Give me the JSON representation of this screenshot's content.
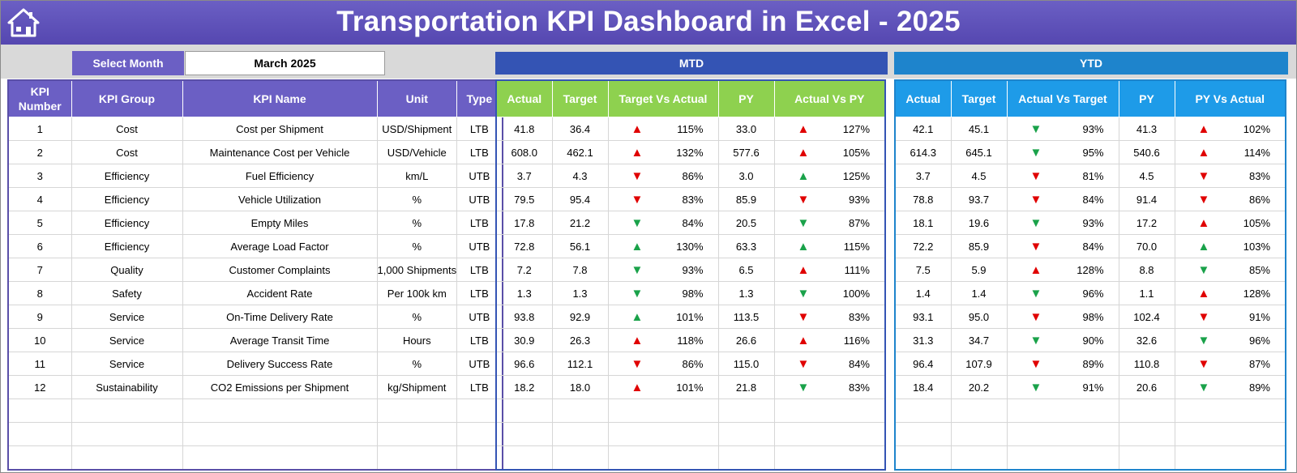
{
  "header": {
    "title": "Transportation KPI Dashboard in Excel - 2025",
    "home_icon": "home-icon"
  },
  "selector": {
    "label": "Select Month",
    "value": "March 2025"
  },
  "bands": {
    "mtd": "MTD",
    "ytd": "YTD"
  },
  "kpi_columns": [
    "KPI Number",
    "KPI Group",
    "KPI Name",
    "Unit",
    "Type"
  ],
  "mtd_columns": [
    "Actual",
    "Target",
    "Target Vs Actual",
    "PY",
    "Actual Vs PY"
  ],
  "ytd_columns": [
    "Actual",
    "Target",
    "Actual Vs Target",
    "PY",
    "PY Vs Actual"
  ],
  "colors": {
    "header": "#5a4fb6",
    "kpi_header": "#6b5fc4",
    "mtd_band": "#3454b4",
    "mtd_header": "#8ed14f",
    "ytd_band": "#1e84cc",
    "ytd_header": "#1e9be8",
    "arrow_red": "#e00000",
    "arrow_green": "#1aa24a"
  },
  "rows": [
    {
      "num": "1",
      "group": "Cost",
      "name": "Cost per Shipment",
      "unit": "USD/Shipment",
      "type": "LTB",
      "mtd": {
        "actual": "41.8",
        "target": "36.4",
        "tva_arrow": "up-red",
        "tva": "115%",
        "py": "33.0",
        "avp_arrow": "up-red",
        "avp": "127%"
      },
      "ytd": {
        "actual": "42.1",
        "target": "45.1",
        "avt_arrow": "down-green",
        "avt": "93%",
        "py": "41.3",
        "pva_arrow": "up-red",
        "pva": "102%"
      }
    },
    {
      "num": "2",
      "group": "Cost",
      "name": "Maintenance Cost per Vehicle",
      "unit": "USD/Vehicle",
      "type": "LTB",
      "mtd": {
        "actual": "608.0",
        "target": "462.1",
        "tva_arrow": "up-red",
        "tva": "132%",
        "py": "577.6",
        "avp_arrow": "up-red",
        "avp": "105%"
      },
      "ytd": {
        "actual": "614.3",
        "target": "645.1",
        "avt_arrow": "down-green",
        "avt": "95%",
        "py": "540.6",
        "pva_arrow": "up-red",
        "pva": "114%"
      }
    },
    {
      "num": "3",
      "group": "Efficiency",
      "name": "Fuel Efficiency",
      "unit": "km/L",
      "type": "UTB",
      "mtd": {
        "actual": "3.7",
        "target": "4.3",
        "tva_arrow": "down-red",
        "tva": "86%",
        "py": "3.0",
        "avp_arrow": "up-green",
        "avp": "125%"
      },
      "ytd": {
        "actual": "3.7",
        "target": "4.5",
        "avt_arrow": "down-red",
        "avt": "81%",
        "py": "4.5",
        "pva_arrow": "down-red",
        "pva": "83%"
      }
    },
    {
      "num": "4",
      "group": "Efficiency",
      "name": "Vehicle Utilization",
      "unit": "%",
      "type": "UTB",
      "mtd": {
        "actual": "79.5",
        "target": "95.4",
        "tva_arrow": "down-red",
        "tva": "83%",
        "py": "85.9",
        "avp_arrow": "down-red",
        "avp": "93%"
      },
      "ytd": {
        "actual": "78.8",
        "target": "93.7",
        "avt_arrow": "down-red",
        "avt": "84%",
        "py": "91.4",
        "pva_arrow": "down-red",
        "pva": "86%"
      }
    },
    {
      "num": "5",
      "group": "Efficiency",
      "name": "Empty Miles",
      "unit": "%",
      "type": "LTB",
      "mtd": {
        "actual": "17.8",
        "target": "21.2",
        "tva_arrow": "down-green",
        "tva": "84%",
        "py": "20.5",
        "avp_arrow": "down-green",
        "avp": "87%"
      },
      "ytd": {
        "actual": "18.1",
        "target": "19.6",
        "avt_arrow": "down-green",
        "avt": "93%",
        "py": "17.2",
        "pva_arrow": "up-red",
        "pva": "105%"
      }
    },
    {
      "num": "6",
      "group": "Efficiency",
      "name": "Average Load Factor",
      "unit": "%",
      "type": "UTB",
      "mtd": {
        "actual": "72.8",
        "target": "56.1",
        "tva_arrow": "up-green",
        "tva": "130%",
        "py": "63.3",
        "avp_arrow": "up-green",
        "avp": "115%"
      },
      "ytd": {
        "actual": "72.2",
        "target": "85.9",
        "avt_arrow": "down-red",
        "avt": "84%",
        "py": "70.0",
        "pva_arrow": "up-green",
        "pva": "103%"
      }
    },
    {
      "num": "7",
      "group": "Quality",
      "name": "Customer Complaints",
      "unit": "1,000 Shipments",
      "type": "LTB",
      "mtd": {
        "actual": "7.2",
        "target": "7.8",
        "tva_arrow": "down-green",
        "tva": "93%",
        "py": "6.5",
        "avp_arrow": "up-red",
        "avp": "111%"
      },
      "ytd": {
        "actual": "7.5",
        "target": "5.9",
        "avt_arrow": "up-red",
        "avt": "128%",
        "py": "8.8",
        "pva_arrow": "down-green",
        "pva": "85%"
      }
    },
    {
      "num": "8",
      "group": "Safety",
      "name": "Accident Rate",
      "unit": "Per 100k km",
      "type": "LTB",
      "mtd": {
        "actual": "1.3",
        "target": "1.3",
        "tva_arrow": "down-green",
        "tva": "98%",
        "py": "1.3",
        "avp_arrow": "down-green",
        "avp": "100%"
      },
      "ytd": {
        "actual": "1.4",
        "target": "1.4",
        "avt_arrow": "down-green",
        "avt": "96%",
        "py": "1.1",
        "pva_arrow": "up-red",
        "pva": "128%"
      }
    },
    {
      "num": "9",
      "group": "Service",
      "name": "On-Time Delivery Rate",
      "unit": "%",
      "type": "UTB",
      "mtd": {
        "actual": "93.8",
        "target": "92.9",
        "tva_arrow": "up-green",
        "tva": "101%",
        "py": "113.5",
        "avp_arrow": "down-red",
        "avp": "83%"
      },
      "ytd": {
        "actual": "93.1",
        "target": "95.0",
        "avt_arrow": "down-red",
        "avt": "98%",
        "py": "102.4",
        "pva_arrow": "down-red",
        "pva": "91%"
      }
    },
    {
      "num": "10",
      "group": "Service",
      "name": "Average Transit Time",
      "unit": "Hours",
      "type": "LTB",
      "mtd": {
        "actual": "30.9",
        "target": "26.3",
        "tva_arrow": "up-red",
        "tva": "118%",
        "py": "26.6",
        "avp_arrow": "up-red",
        "avp": "116%"
      },
      "ytd": {
        "actual": "31.3",
        "target": "34.7",
        "avt_arrow": "down-green",
        "avt": "90%",
        "py": "32.6",
        "pva_arrow": "down-green",
        "pva": "96%"
      }
    },
    {
      "num": "11",
      "group": "Service",
      "name": "Delivery Success Rate",
      "unit": "%",
      "type": "UTB",
      "mtd": {
        "actual": "96.6",
        "target": "112.1",
        "tva_arrow": "down-red",
        "tva": "86%",
        "py": "115.0",
        "avp_arrow": "down-red",
        "avp": "84%"
      },
      "ytd": {
        "actual": "96.4",
        "target": "107.9",
        "avt_arrow": "down-red",
        "avt": "89%",
        "py": "110.8",
        "pva_arrow": "down-red",
        "pva": "87%"
      }
    },
    {
      "num": "12",
      "group": "Sustainability",
      "name": "CO2 Emissions per Shipment",
      "unit": "kg/Shipment",
      "type": "LTB",
      "mtd": {
        "actual": "18.2",
        "target": "18.0",
        "tva_arrow": "up-red",
        "tva": "101%",
        "py": "21.8",
        "avp_arrow": "down-green",
        "avp": "83%"
      },
      "ytd": {
        "actual": "18.4",
        "target": "20.2",
        "avt_arrow": "down-green",
        "avt": "91%",
        "py": "20.6",
        "pva_arrow": "down-green",
        "pva": "89%"
      }
    }
  ]
}
